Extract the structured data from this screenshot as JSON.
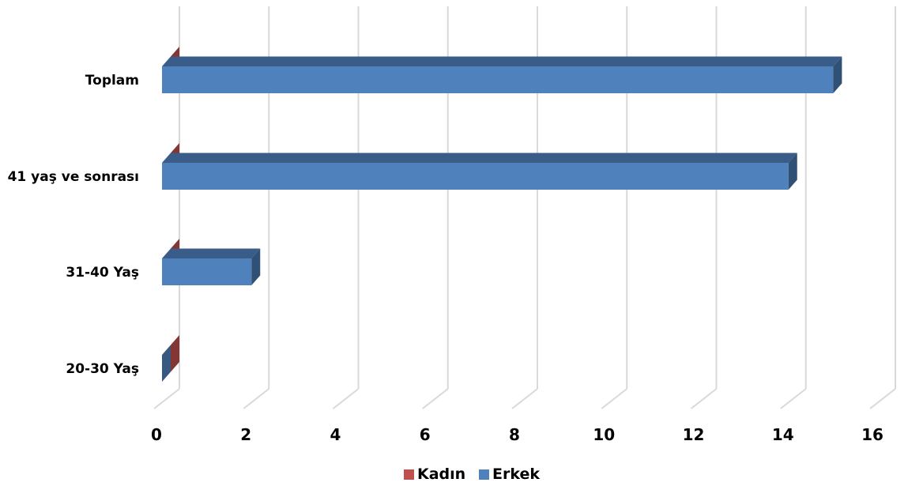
{
  "chart_data": {
    "type": "bar",
    "orientation": "horizontal",
    "style": "3d",
    "categories": [
      "Toplam",
      "41 yaş ve sonrası",
      "31-40 Yaş",
      "20-30 Yaş"
    ],
    "series": [
      {
        "name": "Kadın",
        "values": [
          0,
          0,
          0,
          0
        ],
        "color": "#C0504D"
      },
      {
        "name": "Erkek",
        "values": [
          15,
          14,
          2,
          0
        ],
        "color": "#4F81BD"
      }
    ],
    "xlim": [
      0,
      16
    ],
    "xticks": [
      "0",
      "2",
      "4",
      "6",
      "8",
      "10",
      "12",
      "14",
      "16"
    ],
    "grid": true,
    "legend_position": "bottom",
    "title": "",
    "xlabel": "",
    "ylabel": ""
  }
}
